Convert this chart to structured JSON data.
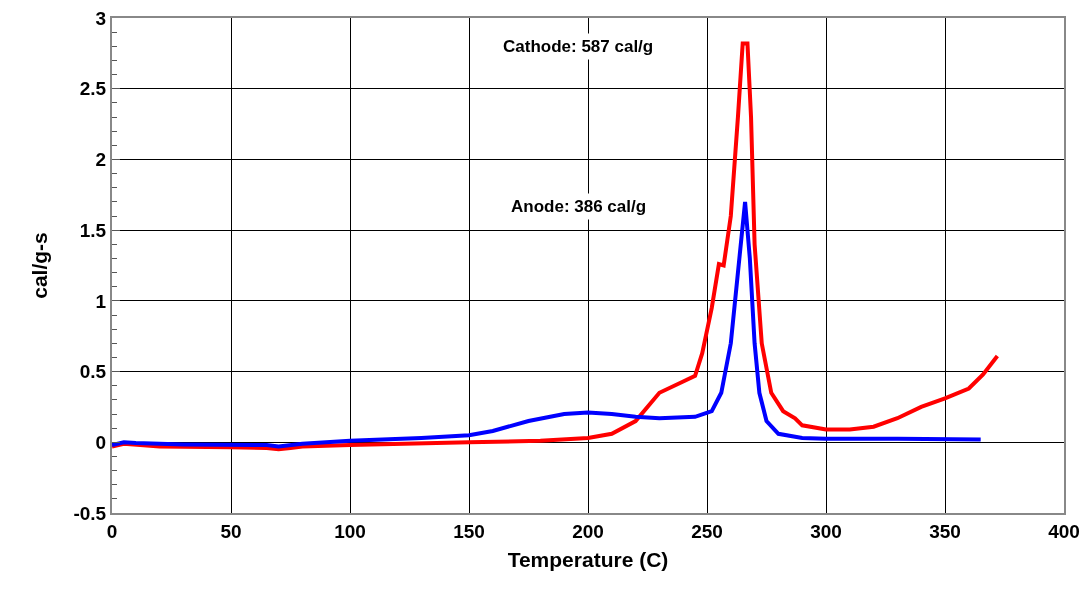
{
  "chart_data": {
    "type": "line",
    "xlabel": "Temperature (C)",
    "ylabel": "cal/g-s",
    "annotations": [
      "Cathode: 587 cal/g",
      "Anode: 386 cal/g"
    ],
    "xlim": [
      0,
      400
    ],
    "xticks": [
      0,
      50,
      100,
      150,
      200,
      250,
      300,
      350,
      400
    ],
    "ylim": [
      -0.5,
      3
    ],
    "yticks": [
      -0.5,
      0,
      0.5,
      1,
      1.5,
      2,
      2.5,
      3
    ],
    "grid": true,
    "marker": "none",
    "line_style": "solid",
    "series": [
      {
        "color": "#ff0000",
        "x": [
          0,
          5,
          20,
          50,
          65,
          70,
          75,
          80,
          100,
          150,
          180,
          200,
          210,
          220,
          230,
          240,
          245,
          248,
          252,
          255,
          257,
          260,
          263,
          265,
          267,
          268.5,
          270,
          273,
          277,
          282,
          287,
          290,
          300,
          310,
          320,
          330,
          340,
          350,
          360,
          366,
          372
        ],
        "values": [
          -0.03,
          -0.01,
          -0.03,
          -0.035,
          -0.04,
          -0.05,
          -0.04,
          -0.03,
          -0.02,
          0,
          0.01,
          0.03,
          0.06,
          0.15,
          0.35,
          0.43,
          0.47,
          0.63,
          0.95,
          1.26,
          1.25,
          1.6,
          2.3,
          2.82,
          2.82,
          2.3,
          1.4,
          0.7,
          0.35,
          0.22,
          0.17,
          0.12,
          0.09,
          0.09,
          0.11,
          0.17,
          0.25,
          0.31,
          0.38,
          0.48,
          0.61
        ]
      },
      {
        "color": "#0000ff",
        "x": [
          0,
          5,
          10,
          30,
          65,
          70,
          80,
          100,
          130,
          150,
          160,
          175,
          190,
          200,
          210,
          220,
          230,
          245,
          252,
          256,
          260,
          263,
          266,
          268,
          270,
          272,
          275,
          280,
          290,
          300,
          330,
          365
        ],
        "values": [
          -0.02,
          0,
          -0.005,
          -0.015,
          -0.02,
          -0.03,
          -0.01,
          0.01,
          0.03,
          0.05,
          0.08,
          0.15,
          0.2,
          0.21,
          0.2,
          0.18,
          0.17,
          0.18,
          0.22,
          0.35,
          0.7,
          1.2,
          1.7,
          1.3,
          0.7,
          0.35,
          0.15,
          0.06,
          0.03,
          0.025,
          0.025,
          0.02
        ]
      }
    ]
  }
}
